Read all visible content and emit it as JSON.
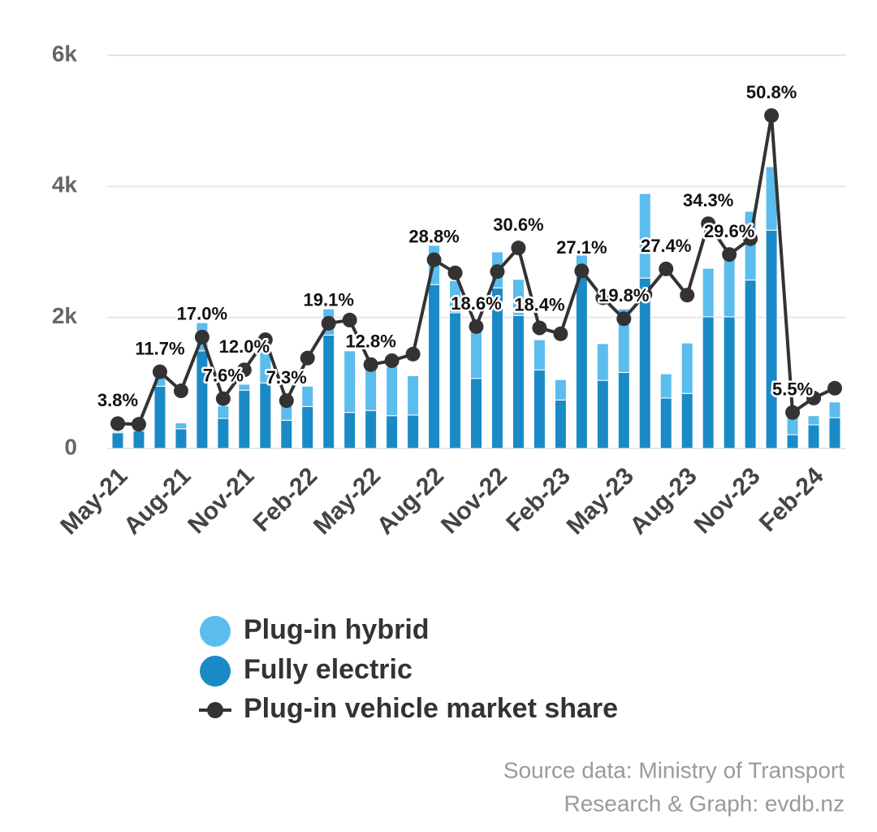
{
  "chart_data": {
    "type": "bar",
    "categories": [
      "May-21",
      null,
      null,
      "Aug-21",
      null,
      null,
      "Nov-21",
      null,
      null,
      "Feb-22",
      null,
      null,
      "May-22",
      null,
      null,
      "Aug-22",
      null,
      null,
      "Nov-22",
      null,
      null,
      "Feb-23",
      null,
      null,
      "May-23",
      null,
      null,
      "Aug-23",
      null,
      null,
      "Nov-23",
      null,
      null,
      "Feb-24",
      null
    ],
    "series": [
      {
        "name": "Plug-in hybrid",
        "color": "#5bbcee",
        "type": "bar",
        "values": [
          20,
          30,
          130,
          90,
          430,
          190,
          90,
          650,
          250,
          310,
          400,
          940,
          700,
          750,
          600,
          600,
          490,
          730,
          550,
          550,
          460,
          310,
          320,
          560,
          970,
          1290,
          370,
          770,
          740,
          990,
          1050,
          970,
          370,
          140,
          240
        ]
      },
      {
        "name": "Fully electric",
        "color": "#1a8ac7",
        "type": "bar",
        "values": [
          240,
          270,
          950,
          300,
          1490,
          460,
          890,
          1000,
          430,
          640,
          1730,
          550,
          580,
          500,
          510,
          2500,
          2070,
          1070,
          2450,
          2030,
          1200,
          740,
          2630,
          1040,
          1160,
          2600,
          770,
          840,
          2010,
          2010,
          2570,
          3330,
          210,
          360,
          470
        ]
      },
      {
        "name": "Plug-in vehicle market share",
        "color": "#333333",
        "type": "line",
        "axis": "y2",
        "values": [
          3.8,
          3.7,
          11.7,
          8.8,
          17.0,
          7.6,
          12.0,
          16.6,
          7.3,
          13.8,
          19.1,
          19.6,
          12.8,
          13.4,
          14.4,
          28.8,
          26.8,
          18.6,
          27.0,
          30.6,
          18.4,
          17.5,
          27.1,
          23.0,
          19.8,
          23.5,
          27.4,
          23.4,
          34.3,
          29.6,
          32.0,
          50.8,
          5.5,
          7.7,
          9.2
        ],
        "value_labels": [
          "3.8%",
          null,
          "11.7%",
          null,
          "17.0%",
          "7.6%",
          "12.0%",
          null,
          "7.3%",
          null,
          "19.1%",
          null,
          "12.8%",
          null,
          null,
          "28.8%",
          null,
          "18.6%",
          null,
          "30.6%",
          "18.4%",
          null,
          "27.1%",
          null,
          "19.8%",
          null,
          "27.4%",
          null,
          "34.3%",
          "29.6%",
          null,
          "50.8%",
          "5.5%",
          null,
          null
        ]
      }
    ],
    "stacked": true,
    "ylim": [
      0,
      6000
    ],
    "yticks": [
      0,
      {
        "value": 2000,
        "label": "2k"
      },
      {
        "value": 4000,
        "label": "4k"
      },
      {
        "value": 6000,
        "label": "6k"
      }
    ],
    "y2lim": [
      0,
      60
    ],
    "grid": true,
    "legend": "bottom",
    "source": [
      "Source data: Ministry of Transport",
      "Research & Graph: evdb.nz"
    ]
  }
}
